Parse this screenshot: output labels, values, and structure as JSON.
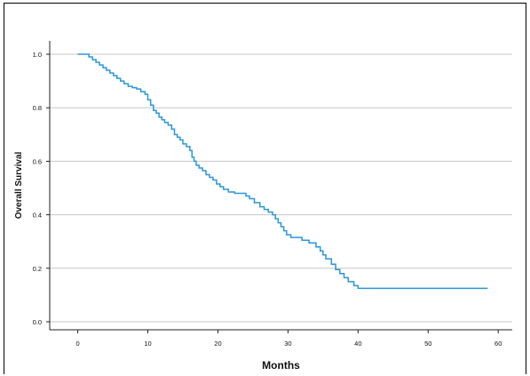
{
  "chart_data": {
    "type": "line",
    "xlabel": "Months",
    "ylabel": "Overall Survival",
    "xlim": [
      -4,
      62
    ],
    "ylim": [
      -0.03,
      1.05
    ],
    "xticks": [
      0,
      10,
      20,
      30,
      40,
      50,
      60
    ],
    "yticks": [
      0.0,
      0.2,
      0.4,
      0.6,
      0.8,
      1.0
    ],
    "ytick_labels": [
      "0.0",
      "0.2",
      "0.4",
      "0.6",
      "0.8",
      "1.0"
    ],
    "grid": "horizontal",
    "series": [
      {
        "step": true,
        "color": "#2b96dd",
        "x": [
          0,
          1.0,
          1.6,
          2.1,
          2.6,
          3.1,
          3.6,
          4.1,
          4.6,
          5.1,
          5.6,
          6.1,
          6.6,
          7.2,
          7.8,
          8.4,
          9.0,
          9.6,
          10.0,
          10.4,
          10.8,
          11.2,
          11.6,
          12.0,
          12.4,
          12.9,
          13.4,
          13.8,
          14.2,
          14.6,
          15.0,
          15.5,
          16.0,
          16.3,
          16.6,
          16.9,
          17.3,
          17.8,
          18.3,
          18.8,
          19.3,
          19.8,
          20.3,
          20.8,
          21.5,
          22.4,
          24.0,
          24.5,
          25.2,
          26.0,
          26.6,
          27.2,
          27.8,
          28.2,
          28.6,
          29.0,
          29.4,
          29.8,
          30.4,
          32.0,
          33.0,
          34.0,
          34.6,
          35.0,
          35.4,
          36.2,
          36.8,
          37.4,
          38.0,
          38.6,
          39.4,
          40.0,
          58.5
        ],
        "y": [
          1.0,
          1.0,
          0.99,
          0.98,
          0.97,
          0.96,
          0.95,
          0.94,
          0.93,
          0.92,
          0.91,
          0.9,
          0.89,
          0.88,
          0.875,
          0.87,
          0.86,
          0.85,
          0.83,
          0.81,
          0.79,
          0.78,
          0.765,
          0.755,
          0.745,
          0.735,
          0.72,
          0.7,
          0.69,
          0.68,
          0.665,
          0.655,
          0.64,
          0.615,
          0.6,
          0.585,
          0.575,
          0.565,
          0.55,
          0.54,
          0.53,
          0.515,
          0.505,
          0.495,
          0.485,
          0.48,
          0.47,
          0.46,
          0.445,
          0.43,
          0.42,
          0.41,
          0.4,
          0.385,
          0.37,
          0.355,
          0.34,
          0.325,
          0.315,
          0.305,
          0.295,
          0.28,
          0.265,
          0.25,
          0.235,
          0.215,
          0.195,
          0.18,
          0.165,
          0.15,
          0.135,
          0.125,
          0.125
        ]
      }
    ]
  }
}
